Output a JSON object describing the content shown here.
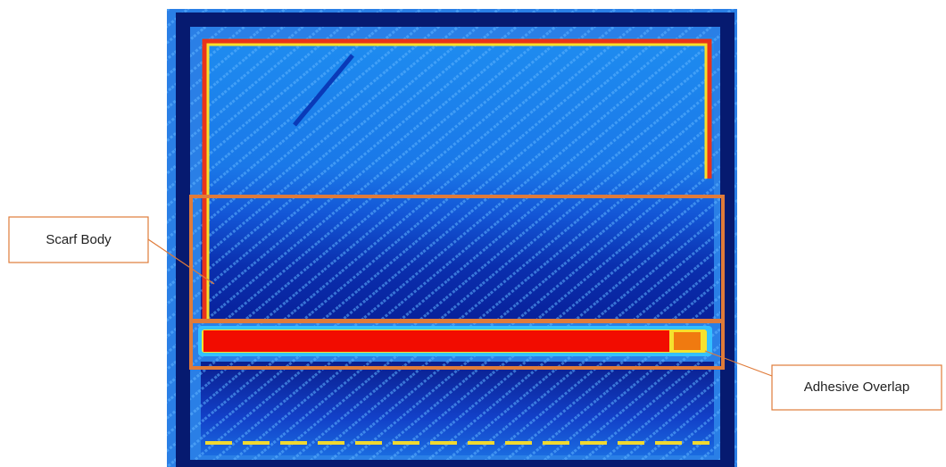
{
  "callouts": [
    {
      "label": "Scarf Body"
    },
    {
      "label": "Adhesive Overlap"
    }
  ]
}
